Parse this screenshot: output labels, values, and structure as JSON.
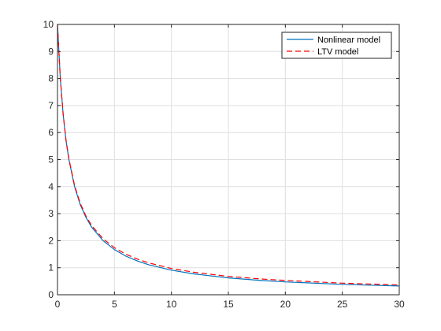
{
  "chart_data": {
    "type": "line",
    "title": "",
    "xlabel": "",
    "ylabel": "",
    "xlim": [
      0,
      30
    ],
    "ylim": [
      0,
      10
    ],
    "xticks": [
      0,
      5,
      10,
      15,
      20,
      25,
      30
    ],
    "yticks": [
      0,
      1,
      2,
      3,
      4,
      5,
      6,
      7,
      8,
      9,
      10
    ],
    "grid": true,
    "legend_position": "top-right",
    "series": [
      {
        "name": "Nonlinear model",
        "color": "#0072BD",
        "style": "solid",
        "x": [
          0,
          0.25,
          0.5,
          0.75,
          1,
          1.5,
          2,
          2.5,
          3,
          4,
          5,
          6,
          7,
          8,
          10,
          12,
          15,
          18,
          20,
          25,
          30
        ],
        "y": [
          10,
          8.0,
          6.67,
          5.71,
          5.0,
          4.0,
          3.33,
          2.86,
          2.5,
          2.0,
          1.67,
          1.43,
          1.25,
          1.11,
          0.91,
          0.77,
          0.625,
          0.526,
          0.476,
          0.385,
          0.323
        ]
      },
      {
        "name": "LTV model",
        "color": "#FF0000",
        "style": "dashed",
        "x": [
          0,
          0.25,
          0.5,
          0.75,
          1,
          1.5,
          2,
          2.5,
          3,
          4,
          5,
          6,
          7,
          8,
          10,
          12,
          15,
          18,
          20,
          25,
          30
        ],
        "y": [
          10,
          8.0,
          6.68,
          5.73,
          5.03,
          4.04,
          3.38,
          2.91,
          2.56,
          2.07,
          1.74,
          1.5,
          1.32,
          1.18,
          0.97,
          0.83,
          0.68,
          0.58,
          0.53,
          0.43,
          0.365
        ]
      }
    ]
  }
}
